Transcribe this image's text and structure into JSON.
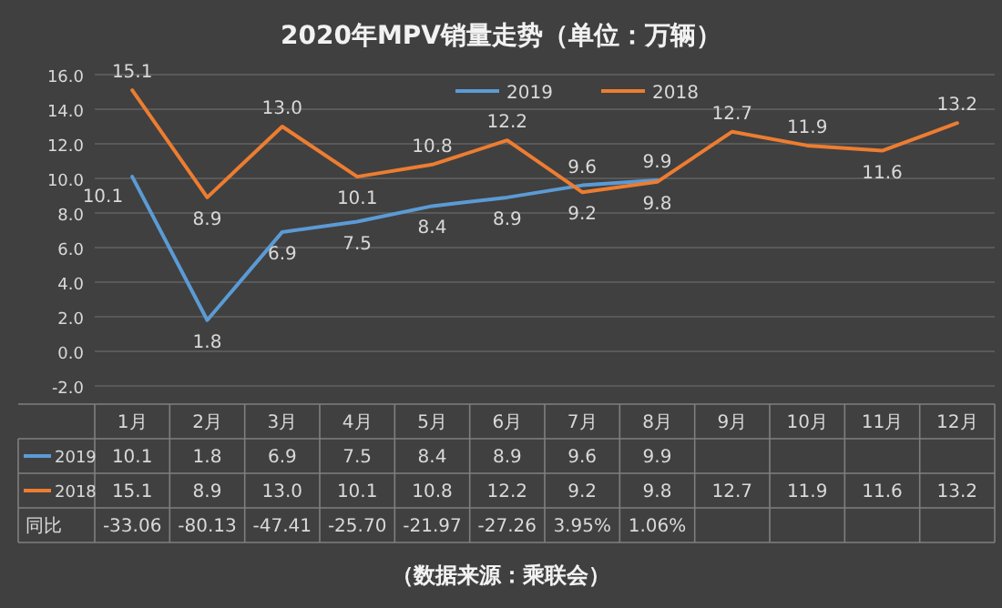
{
  "chart_data": {
    "type": "line",
    "title": "2020年MPV销量走势（单位：万辆）",
    "categories": [
      "1月",
      "2月",
      "3月",
      "4月",
      "5月",
      "6月",
      "7月",
      "8月",
      "9月",
      "10月",
      "11月",
      "12月"
    ],
    "series": [
      {
        "name": "2019",
        "color": "#5b9bd5",
        "values": [
          10.1,
          1.8,
          6.9,
          7.5,
          8.4,
          8.9,
          9.6,
          9.9,
          null,
          null,
          null,
          null
        ],
        "value_labels": [
          "10.1",
          "1.8",
          "6.9",
          "7.5",
          "8.4",
          "8.9",
          "9.6",
          "9.9",
          null,
          null,
          null,
          null
        ]
      },
      {
        "name": "2018",
        "color": "#ed7d31",
        "values": [
          15.1,
          8.9,
          13.0,
          10.1,
          10.8,
          12.2,
          9.2,
          9.8,
          12.7,
          11.9,
          11.6,
          13.2
        ],
        "value_labels": [
          "15.1",
          "8.9",
          "13.0",
          "10.1",
          "10.8",
          "12.2",
          "9.2",
          "9.8",
          "12.7",
          "11.9",
          "11.6",
          "13.2"
        ]
      }
    ],
    "ylim": [
      -2,
      16
    ],
    "yticks": [
      {
        "value": -2,
        "label": "-2.0"
      },
      {
        "value": 0,
        "label": "0.0"
      },
      {
        "value": 2,
        "label": "2.0"
      },
      {
        "value": 4,
        "label": "4.0"
      },
      {
        "value": 6,
        "label": "6.0"
      },
      {
        "value": 8,
        "label": "8.0"
      },
      {
        "value": 10,
        "label": "10.0"
      },
      {
        "value": 12,
        "label": "12.0"
      },
      {
        "value": 14,
        "label": "14.0"
      },
      {
        "value": 16,
        "label": "16.0"
      }
    ],
    "grid": "y",
    "legend": "top",
    "marker": "none",
    "line_style": "solid",
    "data_labels": true,
    "annotations": [
      "同比",
      "-33.06",
      "-80.13",
      "-47.41",
      "-25.70",
      "-21.97",
      "-27.26",
      "3.95%",
      "1.06%",
      "（数据来源：乘联会）"
    ]
  }
}
